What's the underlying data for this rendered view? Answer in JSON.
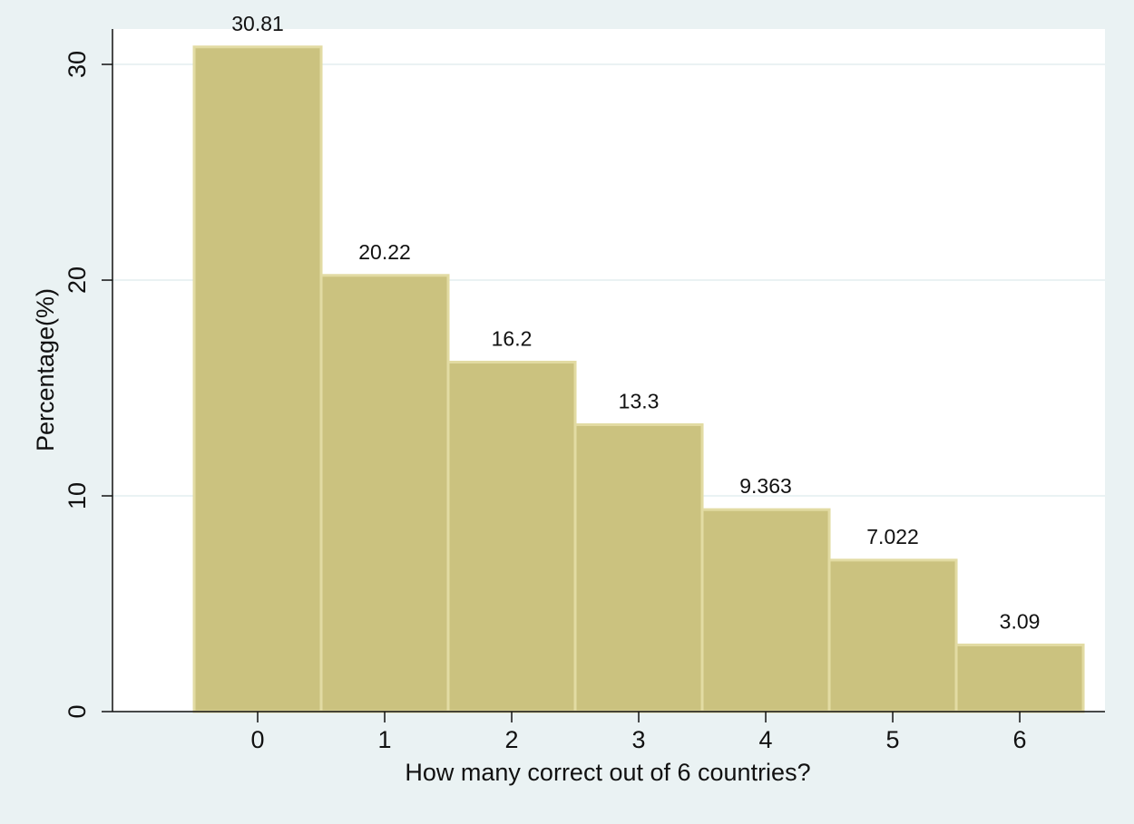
{
  "chart_data": {
    "type": "histogram",
    "x_label": "How many correct out of 6 countries?",
    "y_label": "Percentage(%)",
    "bins": [
      -0.5,
      0.5,
      1.5,
      2.5,
      3.5,
      4.5,
      5.5,
      6.5
    ],
    "values": [
      30.81,
      20.22,
      16.2,
      13.3,
      9.363,
      7.022,
      3.09
    ],
    "color": "#cbc27f",
    "edge_color": "#e2dba3",
    "xlim": [
      -1.143,
      6.671
    ],
    "xticks": [
      0,
      1,
      2,
      3,
      4,
      5,
      6
    ],
    "ylim": [
      0,
      31.64
    ],
    "yticks": [
      0,
      10,
      20,
      30
    ],
    "grid": true
  }
}
